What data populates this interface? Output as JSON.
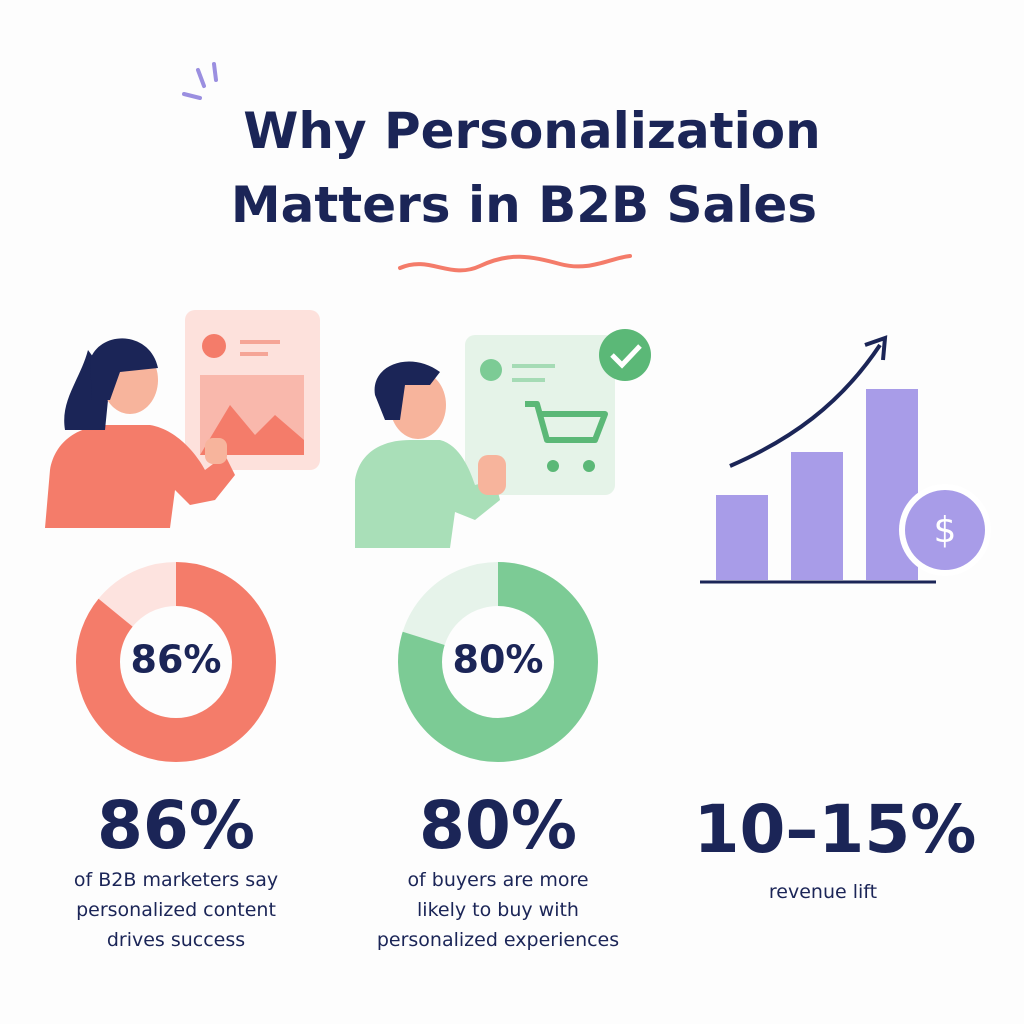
{
  "title": [
    "Why Personalization",
    "Matters in B2B Sales"
  ],
  "stats": [
    {
      "value": 86,
      "label": "86%",
      "caption": [
        "of B2B marketers say",
        "personalized content",
        "drives success"
      ]
    },
    {
      "value": 80,
      "label": "80%",
      "caption": [
        "of buyers are more",
        "likely to buy with",
        "personalized experiences"
      ]
    },
    {
      "label": "10–15%",
      "caption": [
        "revenue lift"
      ]
    }
  ]
}
